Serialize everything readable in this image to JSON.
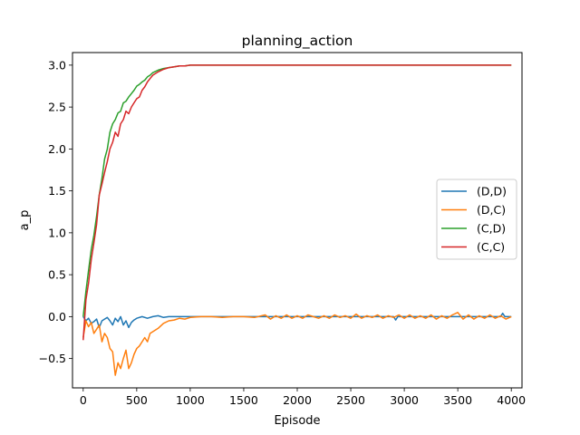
{
  "chart_data": {
    "type": "line",
    "title": "planning_action",
    "xlabel": "Episode",
    "ylabel": "a_p",
    "xlim": [
      -100,
      4100
    ],
    "ylim": [
      -0.85,
      3.15
    ],
    "xticks": [
      0,
      500,
      1000,
      1500,
      2000,
      2500,
      3000,
      3500,
      4000
    ],
    "xtick_labels": [
      "0",
      "500",
      "1000",
      "1500",
      "2000",
      "2500",
      "3000",
      "3500",
      "4000"
    ],
    "yticks": [
      -0.5,
      0.0,
      0.5,
      1.0,
      1.5,
      2.0,
      2.5,
      3.0
    ],
    "ytick_labels": [
      "−0.5",
      "0.0",
      "0.5",
      "1.0",
      "1.5",
      "2.0",
      "2.5",
      "3.0"
    ],
    "grid": false,
    "legend_position": "center-right",
    "series": [
      {
        "name": "(D,D)",
        "color": "#1f77b4",
        "x": [
          0,
          25,
          50,
          75,
          100,
          125,
          150,
          175,
          200,
          225,
          250,
          275,
          300,
          325,
          350,
          375,
          400,
          425,
          450,
          475,
          500,
          550,
          600,
          650,
          700,
          750,
          800,
          850,
          900,
          1000,
          1200,
          1500,
          2000,
          2500,
          2900,
          2920,
          2940,
          3000,
          3500,
          3900,
          3920,
          3940,
          4000
        ],
        "y": [
          0.0,
          -0.05,
          -0.02,
          -0.08,
          -0.06,
          -0.03,
          -0.13,
          -0.05,
          -0.03,
          -0.01,
          -0.05,
          -0.1,
          -0.02,
          -0.06,
          0.0,
          -0.1,
          -0.05,
          -0.13,
          -0.07,
          -0.04,
          -0.02,
          0.0,
          -0.02,
          0.0,
          0.01,
          -0.01,
          0.0,
          0.0,
          0.0,
          0.0,
          0.0,
          0.0,
          0.0,
          0.0,
          0.0,
          -0.04,
          0.0,
          0.0,
          0.0,
          0.0,
          0.04,
          0.0,
          0.0
        ]
      },
      {
        "name": "(D,C)",
        "color": "#ff7f0e",
        "x": [
          0,
          25,
          50,
          75,
          100,
          125,
          150,
          175,
          200,
          225,
          250,
          275,
          300,
          325,
          350,
          375,
          400,
          425,
          450,
          475,
          500,
          525,
          550,
          575,
          600,
          625,
          650,
          700,
          750,
          800,
          850,
          900,
          950,
          1000,
          1100,
          1200,
          1300,
          1400,
          1500,
          1600,
          1700,
          1750,
          1800,
          1850,
          1900,
          1950,
          2000,
          2050,
          2100,
          2150,
          2200,
          2250,
          2300,
          2350,
          2400,
          2450,
          2500,
          2550,
          2600,
          2650,
          2700,
          2750,
          2800,
          2850,
          2900,
          2950,
          3000,
          3050,
          3100,
          3150,
          3200,
          3250,
          3300,
          3350,
          3400,
          3450,
          3500,
          3550,
          3600,
          3650,
          3700,
          3750,
          3800,
          3850,
          3900,
          3950,
          4000
        ],
        "y": [
          -0.25,
          -0.05,
          -0.12,
          -0.07,
          -0.2,
          -0.15,
          -0.1,
          -0.3,
          -0.2,
          -0.25,
          -0.38,
          -0.42,
          -0.7,
          -0.55,
          -0.62,
          -0.5,
          -0.4,
          -0.62,
          -0.55,
          -0.45,
          -0.38,
          -0.35,
          -0.3,
          -0.25,
          -0.3,
          -0.2,
          -0.18,
          -0.14,
          -0.08,
          -0.05,
          -0.04,
          -0.02,
          -0.03,
          -0.01,
          0.0,
          0.0,
          -0.01,
          0.0,
          0.0,
          -0.01,
          0.02,
          -0.03,
          0.01,
          -0.02,
          0.02,
          -0.02,
          0.01,
          -0.02,
          0.02,
          0.0,
          -0.02,
          0.01,
          -0.02,
          0.02,
          -0.01,
          0.01,
          -0.02,
          0.03,
          -0.02,
          0.01,
          -0.01,
          0.02,
          -0.02,
          0.01,
          -0.01,
          0.02,
          -0.02,
          0.02,
          -0.02,
          0.01,
          -0.02,
          0.02,
          -0.03,
          0.01,
          -0.02,
          0.02,
          0.05,
          -0.03,
          0.02,
          -0.03,
          0.01,
          -0.02,
          0.02,
          -0.02,
          0.01,
          -0.03,
          0.0
        ]
      },
      {
        "name": "(C,D)",
        "color": "#2ca02c",
        "x": [
          0,
          25,
          50,
          75,
          100,
          125,
          150,
          175,
          200,
          225,
          250,
          275,
          300,
          325,
          350,
          375,
          400,
          425,
          450,
          475,
          500,
          525,
          550,
          575,
          600,
          625,
          650,
          700,
          750,
          800,
          850,
          900,
          950,
          1000,
          1100,
          1200,
          1500,
          2000,
          3000,
          4000
        ],
        "y": [
          0.0,
          0.3,
          0.55,
          0.8,
          0.97,
          1.2,
          1.45,
          1.65,
          1.88,
          2.0,
          2.2,
          2.3,
          2.35,
          2.43,
          2.45,
          2.55,
          2.57,
          2.62,
          2.66,
          2.7,
          2.75,
          2.77,
          2.8,
          2.82,
          2.86,
          2.88,
          2.91,
          2.94,
          2.96,
          2.97,
          2.98,
          2.99,
          2.99,
          3.0,
          3.0,
          3.0,
          3.0,
          3.0,
          3.0,
          3.0
        ]
      },
      {
        "name": "(C,C)",
        "color": "#d62728",
        "x": [
          0,
          25,
          50,
          75,
          100,
          125,
          150,
          175,
          200,
          225,
          250,
          275,
          300,
          325,
          350,
          375,
          400,
          425,
          450,
          475,
          500,
          525,
          550,
          575,
          600,
          625,
          650,
          700,
          750,
          800,
          850,
          900,
          950,
          1000,
          1100,
          1200,
          1500,
          2000,
          3000,
          4000
        ],
        "y": [
          -0.28,
          0.2,
          0.4,
          0.68,
          0.88,
          1.1,
          1.45,
          1.58,
          1.72,
          1.85,
          2.0,
          2.08,
          2.2,
          2.15,
          2.3,
          2.35,
          2.45,
          2.42,
          2.5,
          2.55,
          2.6,
          2.62,
          2.7,
          2.74,
          2.8,
          2.84,
          2.88,
          2.92,
          2.95,
          2.97,
          2.98,
          2.99,
          2.99,
          3.0,
          3.0,
          3.0,
          3.0,
          3.0,
          3.0,
          3.0
        ]
      }
    ]
  }
}
